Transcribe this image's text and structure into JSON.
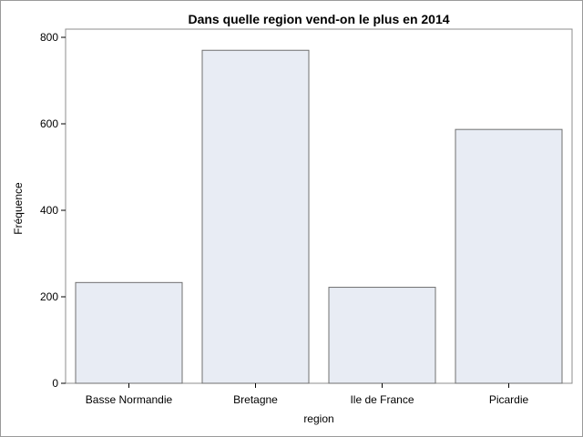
{
  "chart_data": {
    "type": "bar",
    "title": "Dans quelle region vend-on le plus en 2014",
    "xlabel": "region",
    "ylabel": "Fréquence",
    "categories": [
      "Basse Normandie",
      "Bretagne",
      "Ile de France",
      "Picardie"
    ],
    "values": [
      233,
      770,
      222,
      587
    ],
    "ylim": [
      0,
      800
    ],
    "yticks": [
      0,
      200,
      400,
      600,
      800
    ],
    "grid": false,
    "legend": "none",
    "colors": {
      "bar_fill": "#e8ecf4",
      "bar_stroke": "#6f6f6f",
      "frame": "#8c8c8c"
    }
  }
}
